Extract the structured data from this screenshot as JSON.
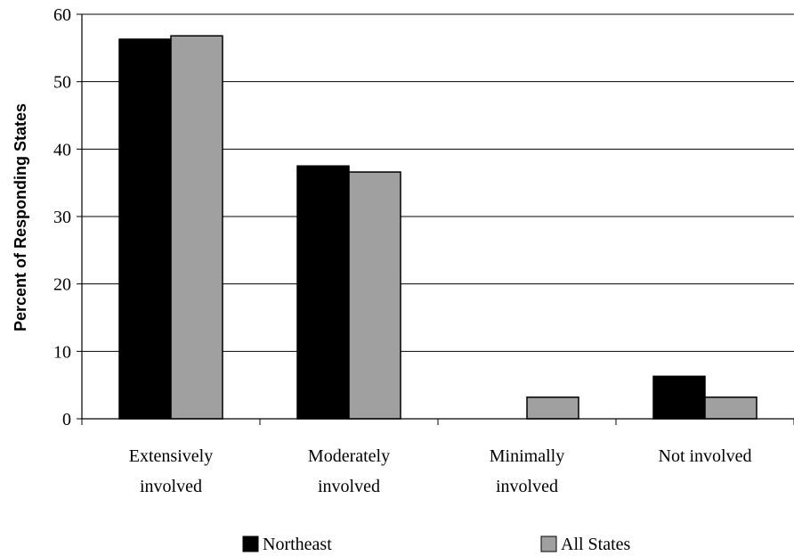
{
  "chart_data": {
    "type": "bar",
    "ylabel": "Percent of Responding States",
    "categories": [
      [
        "Extensively",
        "involved"
      ],
      [
        "Moderately",
        "involved"
      ],
      [
        "Minimally",
        "involved"
      ],
      [
        "Not involved"
      ]
    ],
    "series": [
      {
        "name": "Northeast",
        "color": "#000000",
        "values": [
          56.3,
          37.5,
          0,
          6.3
        ]
      },
      {
        "name": "All States",
        "color": "#a0a0a0",
        "values": [
          56.8,
          36.6,
          3.2,
          3.2
        ]
      }
    ],
    "ylim": [
      0,
      60
    ],
    "yticks": [
      "0",
      "10",
      "20",
      "30",
      "40",
      "50",
      "60"
    ],
    "grid": true,
    "legend_position": "bottom"
  }
}
